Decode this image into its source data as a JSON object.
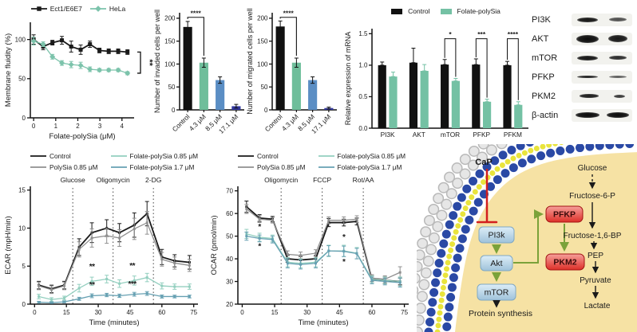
{
  "figure": {
    "background": "#ffffff"
  },
  "chart_data": [
    {
      "id": "fluidity",
      "type": "line",
      "xlabel": "Folate-polySia (μM)",
      "ylabel": "Membrane fluidity (%)",
      "xlim": [
        -0.15,
        4.55
      ],
      "ylim": [
        0,
        122
      ],
      "xticks": [
        0,
        1,
        2,
        3,
        4
      ],
      "yticks": [
        0,
        50,
        100
      ],
      "bracket": {
        "label": "**",
        "y1": 84,
        "y2": 57
      },
      "series": [
        {
          "name": "Ect1/E6E7",
          "color": "#1a1a1a",
          "marker": "square",
          "x": [
            0,
            0.43,
            0.85,
            1.28,
            1.7,
            2.13,
            2.55,
            2.98,
            3.4,
            3.83,
            4.25
          ],
          "y": [
            100,
            91,
            96,
            99,
            91,
            87,
            94,
            86,
            85,
            85,
            84
          ],
          "err": [
            6,
            4,
            3,
            5,
            7,
            6,
            4,
            3,
            3,
            3,
            3
          ]
        },
        {
          "name": "HeLa",
          "color": "#7cc3ab",
          "marker": "diamond",
          "x": [
            0,
            0.43,
            0.85,
            1.28,
            1.7,
            2.13,
            2.55,
            2.98,
            3.4,
            3.83,
            4.25
          ],
          "y": [
            98,
            94,
            78,
            70,
            68,
            67,
            62,
            61,
            61,
            61,
            57
          ],
          "err": [
            5,
            3,
            3,
            3,
            4,
            4,
            3,
            2,
            2,
            2,
            2
          ]
        }
      ]
    },
    {
      "id": "invaded",
      "type": "bar",
      "ylabel": "Number of invaded cells per well",
      "categories": [
        "Control",
        "4.3 μM",
        "8.5 μM",
        "17.1 μM"
      ],
      "values": [
        181,
        103,
        65,
        8
      ],
      "errors": [
        12,
        10,
        7,
        4
      ],
      "colors": [
        "#111111",
        "#6fbe9b",
        "#5b8ec4",
        "#32379e"
      ],
      "yticks": [
        0,
        50,
        100,
        150,
        200
      ],
      "ylim": [
        0,
        212
      ],
      "sig": {
        "label": "****",
        "from": 0,
        "to": 1,
        "top": 202
      }
    },
    {
      "id": "migrated",
      "type": "bar",
      "ylabel": "Number of migrated cells per well",
      "categories": [
        "Control",
        "4.3 μM",
        "8.5 μM",
        "17.1 μM"
      ],
      "values": [
        182,
        103,
        65,
        4
      ],
      "errors": [
        12,
        10,
        7,
        2
      ],
      "colors": [
        "#111111",
        "#6fbe9b",
        "#5b8ec4",
        "#32379e"
      ],
      "yticks": [
        0,
        50,
        100,
        150,
        200
      ],
      "ylim": [
        0,
        212
      ],
      "sig": {
        "label": "****",
        "from": 0,
        "to": 1,
        "top": 202
      }
    },
    {
      "id": "mrna",
      "type": "grouped-bar",
      "ylabel": "Relative expression of mRNA",
      "categories": [
        "PI3K",
        "AKT",
        "mTOR",
        "PFKP",
        "PFKM"
      ],
      "yticks": [
        0,
        0.5,
        1,
        1.5
      ],
      "ylim": [
        0,
        1.58
      ],
      "ydecimals": 1,
      "series": [
        {
          "name": "Control",
          "color": "#111111",
          "values": [
            1.0,
            1.04,
            1.01,
            1.01,
            1.0
          ],
          "errors": [
            0.05,
            0.23,
            0.08,
            0.09,
            0.06
          ]
        },
        {
          "name": "Folate-polySia",
          "color": "#74c1a4",
          "values": [
            0.82,
            0.91,
            0.75,
            0.42,
            0.37
          ],
          "errors": [
            0.07,
            0.1,
            0.04,
            0.04,
            0.05
          ]
        }
      ],
      "sig": [
        {
          "cat": 2,
          "label": "*"
        },
        {
          "cat": 3,
          "label": "***"
        },
        {
          "cat": 4,
          "label": "****"
        }
      ]
    },
    {
      "id": "ecar",
      "type": "line",
      "xlabel": "Time (minutes)",
      "ylabel": "ECAR (mpH/min)",
      "xlim": [
        -2,
        77
      ],
      "ylim": [
        0,
        15.5
      ],
      "xticks": [
        0,
        15,
        30,
        45,
        60,
        75
      ],
      "yticks": [
        0,
        5,
        10,
        15
      ],
      "legend_order": [
        0,
        2,
        1,
        3
      ],
      "events": [
        {
          "x": 18,
          "label": "Glucose"
        },
        {
          "x": 37,
          "label": "Oligomycin"
        },
        {
          "x": 56,
          "label": "2-DG"
        }
      ],
      "annotations": [
        {
          "x": 27,
          "y": 4.6,
          "label": "**"
        },
        {
          "x": 27,
          "y": 2.2,
          "label": "**"
        },
        {
          "x": 46,
          "y": 4.7,
          "label": "**"
        },
        {
          "x": 46,
          "y": 2.3,
          "label": "***"
        }
      ],
      "series": [
        {
          "name": "Control",
          "color": "#1a1a1a",
          "marker": "square",
          "x": [
            2,
            8,
            14,
            21,
            27,
            34,
            40,
            47,
            53,
            60,
            66,
            73
          ],
          "y": [
            2.5,
            2.0,
            2.5,
            7.5,
            9.4,
            10.0,
            9.4,
            10.4,
            11.9,
            6.2,
            5.7,
            5.5
          ],
          "err": [
            0.5,
            0.5,
            0.5,
            1.1,
            1.3,
            1.1,
            1.2,
            1.6,
            1.6,
            1.0,
            0.8,
            0.9
          ]
        },
        {
          "name": "PolySia 0.85 μM",
          "color": "#8f8f8f",
          "marker": "square",
          "x": [
            2,
            8,
            14,
            21,
            27,
            34,
            40,
            47,
            53,
            60,
            66,
            73
          ],
          "y": [
            2.4,
            1.9,
            2.4,
            7.2,
            8.7,
            9.0,
            8.7,
            9.9,
            10.7,
            5.9,
            5.4,
            5.1
          ],
          "err": [
            0.5,
            0.5,
            0.5,
            1.0,
            1.2,
            1.0,
            1.1,
            1.4,
            1.5,
            0.9,
            0.8,
            0.8
          ]
        },
        {
          "name": "Folate-polySia 0.85 μM",
          "color": "#93cfbf",
          "marker": "square",
          "x": [
            2,
            8,
            14,
            21,
            27,
            34,
            40,
            47,
            53,
            60,
            66,
            73
          ],
          "y": [
            1.0,
            0.6,
            0.8,
            2.1,
            3.0,
            3.3,
            2.7,
            3.1,
            3.5,
            2.4,
            2.3,
            2.3
          ],
          "err": [
            0.3,
            0.25,
            0.25,
            0.5,
            0.55,
            0.5,
            0.5,
            0.6,
            0.55,
            0.4,
            0.35,
            0.35
          ]
        },
        {
          "name": "Folate-polySia 1.7 μM",
          "color": "#66a0b2",
          "marker": "square",
          "x": [
            2,
            8,
            14,
            21,
            27,
            34,
            40,
            47,
            53,
            60,
            66,
            73
          ],
          "y": [
            0.25,
            0.2,
            0.3,
            0.7,
            1.1,
            1.2,
            1.1,
            1.3,
            1.4,
            1.0,
            1.0,
            1.0
          ],
          "err": [
            0.12,
            0.1,
            0.12,
            0.2,
            0.25,
            0.22,
            0.22,
            0.25,
            0.25,
            0.2,
            0.18,
            0.18
          ]
        }
      ]
    },
    {
      "id": "ocar",
      "type": "line",
      "xlabel": "Time (minutes)",
      "ylabel": "OCAR (pmol/min)",
      "xlim": [
        -2,
        77
      ],
      "ylim": [
        20,
        72
      ],
      "xticks": [
        0,
        15,
        30,
        45,
        60,
        75
      ],
      "yticks": [
        20,
        30,
        40,
        50,
        60,
        70
      ],
      "legend_order": [
        0,
        2,
        1,
        3
      ],
      "events": [
        {
          "x": 18,
          "label": "Oligomycin"
        },
        {
          "x": 37,
          "label": "FCCP"
        },
        {
          "x": 56,
          "label": "Rot/AA"
        }
      ],
      "annotations": [
        {
          "x": 8,
          "y": 53,
          "label": "*"
        },
        {
          "x": 8,
          "y": 44.5,
          "label": "*"
        },
        {
          "x": 47,
          "y": 48.5,
          "label": "*"
        },
        {
          "x": 47,
          "y": 37.5,
          "label": "*"
        }
      ],
      "series": [
        {
          "name": "Control",
          "color": "#1a1a1a",
          "marker": "square",
          "x": [
            2,
            8,
            14,
            21,
            27,
            34,
            40,
            47,
            53,
            60,
            66,
            73
          ],
          "y": [
            63,
            58,
            57.5,
            40,
            39.5,
            40,
            56,
            56,
            56.5,
            31,
            30.5,
            30
          ],
          "err": [
            2.5,
            1.5,
            1.2,
            1.5,
            1.5,
            1.5,
            1.8,
            1.5,
            1.5,
            1.5,
            1.5,
            1.5
          ]
        },
        {
          "name": "PolySia 0.85 μM",
          "color": "#8f8f8f",
          "marker": "square",
          "x": [
            2,
            8,
            14,
            21,
            27,
            34,
            40,
            47,
            53,
            60,
            66,
            73
          ],
          "y": [
            62,
            57.5,
            57,
            42,
            41.5,
            42.5,
            57,
            57,
            57.5,
            31.5,
            31,
            34
          ],
          "err": [
            2,
            1.5,
            1.2,
            1.5,
            1.5,
            1.5,
            1.5,
            1.5,
            1.5,
            1.5,
            1.5,
            2.5
          ]
        },
        {
          "name": "Folate-polySia 0.85 μM",
          "color": "#93cfbf",
          "marker": "square",
          "x": [
            2,
            8,
            14,
            21,
            27,
            34,
            40,
            47,
            53,
            60,
            66,
            73
          ],
          "y": [
            51,
            49.5,
            49,
            38.5,
            38,
            38.5,
            43.5,
            43.5,
            42.5,
            31,
            30.5,
            30
          ],
          "err": [
            2,
            1.8,
            1.5,
            2,
            2,
            2,
            2.5,
            2.5,
            2.5,
            1.5,
            1.5,
            2
          ]
        },
        {
          "name": "Folate-polySia 1.7 μM",
          "color": "#66a0b2",
          "marker": "square",
          "x": [
            2,
            8,
            14,
            21,
            27,
            34,
            40,
            47,
            53,
            60,
            66,
            73
          ],
          "y": [
            50,
            49,
            48.5,
            38,
            37.5,
            38,
            43.5,
            43.3,
            42.3,
            30.5,
            30,
            29.5
          ],
          "err": [
            1.8,
            1.5,
            1.5,
            2,
            2,
            2,
            2.3,
            2.3,
            2.3,
            1.5,
            1.5,
            2
          ]
        }
      ]
    }
  ],
  "blot": {
    "rows": [
      {
        "label": "PI3K",
        "bands": [
          {
            "w": 26,
            "h": 6,
            "o": 0.95
          },
          {
            "w": 22,
            "h": 5,
            "o": 0.7
          }
        ]
      },
      {
        "label": "AKT",
        "bands": [
          {
            "w": 28,
            "h": 10,
            "o": 1
          },
          {
            "w": 24,
            "h": 9,
            "o": 0.95
          }
        ]
      },
      {
        "label": "mTOR",
        "bands": [
          {
            "w": 26,
            "h": 6,
            "o": 0.95
          },
          {
            "w": 22,
            "h": 5.5,
            "o": 0.85
          }
        ]
      },
      {
        "label": "PFKP",
        "bands": [
          {
            "w": 26,
            "h": 3.5,
            "o": 0.9
          },
          {
            "w": 22,
            "h": 3,
            "o": 0.65
          }
        ]
      },
      {
        "label": "PKM2",
        "bands": [
          {
            "w": 24,
            "h": 4.5,
            "o": 0.92
          },
          {
            "w": 14,
            "h": 4,
            "o": 0.8
          }
        ]
      },
      {
        "label": "β-actin",
        "bands": [
          {
            "w": 30,
            "h": 7.5,
            "o": 1
          },
          {
            "w": 28,
            "h": 7.5,
            "o": 1
          }
        ]
      }
    ]
  },
  "diagram": {
    "cap": "CaP",
    "signaling": [
      "PI3k",
      "Akt",
      "mTOR"
    ],
    "protein_synthesis": "Protein synthesis",
    "enzyme_boxes": [
      "PFKP",
      "PKM2"
    ],
    "metabolites": [
      "Glucose",
      "Fructose-6-P",
      "Fructose-1,6-BP",
      "PEP",
      "Pyruvate",
      "Lactate"
    ],
    "colors": {
      "tan": "#f6e2a4",
      "membrane_blue": "#2a49a5",
      "lipid_yellow": "#e9e43c",
      "bead_gray": "#e6e6e6",
      "bead_gray_edge": "#b9b9b9",
      "inhibit_red": "#d21f1f",
      "arrow_green": "#7ba23a",
      "box_blue_light": "#ddeef8",
      "box_blue_dark": "#9fc2da",
      "box_blue_edge": "#7fa8c4",
      "box_red_light": "#f6a09a",
      "box_red_dark": "#dd2f28",
      "box_red_edge": "#a11212"
    }
  }
}
